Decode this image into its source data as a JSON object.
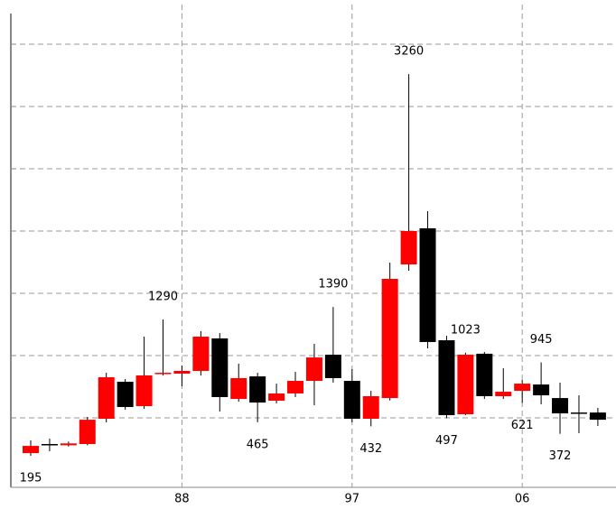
{
  "chart_data": {
    "type": "candlestick",
    "categories": [
      null,
      null,
      null,
      null,
      null,
      null,
      null,
      null,
      "88",
      null,
      null,
      null,
      null,
      null,
      null,
      null,
      null,
      "97",
      null,
      null,
      null,
      null,
      null,
      null,
      null,
      null,
      "06",
      null,
      null,
      null,
      null
    ],
    "open": [
      217,
      290,
      280,
      290,
      493,
      790,
      594,
      855,
      855,
      877,
      1138,
      652,
      833,
      638,
      696,
      797,
      1007,
      797,
      493,
      659,
      1732,
      2022,
      1123,
      529,
      1015,
      674,
      717,
      768,
      659,
      543,
      543
    ],
    "high": [
      319,
      333,
      310,
      507,
      862,
      812,
      1152,
      1290,
      920,
      1196,
      1181,
      935,
      862,
      775,
      870,
      1094,
      1390,
      891,
      717,
      1746,
      3260,
      2159,
      1159,
      1023,
      1029,
      899,
      804,
      945,
      783,
      681,
      580
    ],
    "low": [
      195,
      232,
      270,
      280,
      464,
      565,
      572,
      840,
      754,
      840,
      551,
      630,
      465,
      616,
      667,
      601,
      783,
      464,
      432,
      640,
      1681,
      1058,
      497,
      522,
      652,
      652,
      621,
      609,
      372,
      377,
      435
    ],
    "close": [
      275,
      280,
      295,
      485,
      826,
      587,
      841,
      862,
      877,
      1152,
      667,
      819,
      623,
      696,
      797,
      985,
      819,
      493,
      674,
      1616,
      2000,
      1109,
      522,
      1007,
      674,
      710,
      775,
      681,
      536,
      536,
      485
    ],
    "up_color": "#ff0000",
    "down_color": "#000000",
    "ylim": [
      -36,
      3746
    ],
    "yticks": [
      500,
      1000,
      1500,
      2000,
      2500,
      3000,
      3500
    ],
    "grid": true
  }
}
